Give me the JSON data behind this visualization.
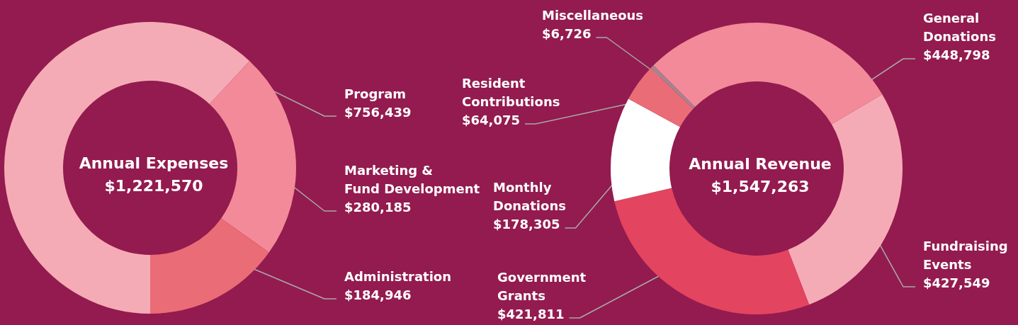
{
  "chart_data": [
    {
      "type": "donut",
      "title": "Annual Expenses",
      "subtitle": "$1,221,570",
      "categories": [
        "Program",
        "Marketing & Fund Development",
        "Administration"
      ],
      "values": [
        756439,
        280185,
        184946
      ],
      "colors": [
        "#f5abb6",
        "#f28a99",
        "#ea6c76"
      ],
      "value_labels": [
        "$756,439",
        "$280,185",
        "$184,946"
      ]
    },
    {
      "type": "donut",
      "title": "Annual Revenue",
      "subtitle": "$1,547,263",
      "categories": [
        "General Donations",
        "Fundraising Events",
        "Government Grants",
        "Monthly Donations",
        "Resident Contributions",
        "Miscellaneous"
      ],
      "values": [
        448798,
        427549,
        421811,
        178305,
        64075,
        6726
      ],
      "colors": [
        "#f28a99",
        "#f5abb6",
        "#e3445f",
        "#ffffff",
        "#ea6c76",
        "#a8838f"
      ],
      "value_labels": [
        "$448,798",
        "$427,549",
        "$421,811",
        "$178,305",
        "$64,075",
        "$6,726"
      ]
    }
  ]
}
